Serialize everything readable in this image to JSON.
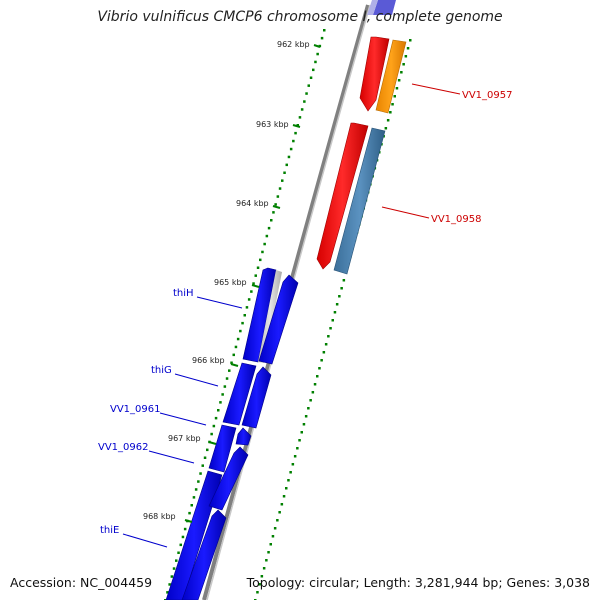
{
  "title": "Vibrio vulnificus CMCP6 chromosome I, complete genome",
  "accession": "Accession: NC_004459",
  "summary": "Topology: circular; Length: 3,281,944 bp; Genes: 3,038",
  "ticks": [
    {
      "label": "962 kbp"
    },
    {
      "label": "963 kbp"
    },
    {
      "label": "964 kbp"
    },
    {
      "label": "965 kbp"
    },
    {
      "label": "966 kbp"
    },
    {
      "label": "967 kbp"
    },
    {
      "label": "968 kbp"
    }
  ],
  "genes": [
    {
      "name": "VV1_0957",
      "color": "#cc0000"
    },
    {
      "name": "VV1_0958",
      "color": "#cc0000"
    },
    {
      "name": "thiH",
      "color": "#0000cc"
    },
    {
      "name": "thiG",
      "color": "#0000cc"
    },
    {
      "name": "VV1_0961",
      "color": "#0000cc"
    },
    {
      "name": "VV1_0962",
      "color": "#0000cc"
    },
    {
      "name": "thiE",
      "color": "#0000cc"
    }
  ],
  "colors": {
    "forward_gene": "#ff0000",
    "orange_feature": "#ff9900",
    "steelblue_feature": "#4682b4",
    "reverse_gene": "#0000ff",
    "backbone": "#808080",
    "tick_dots": "#008000"
  }
}
